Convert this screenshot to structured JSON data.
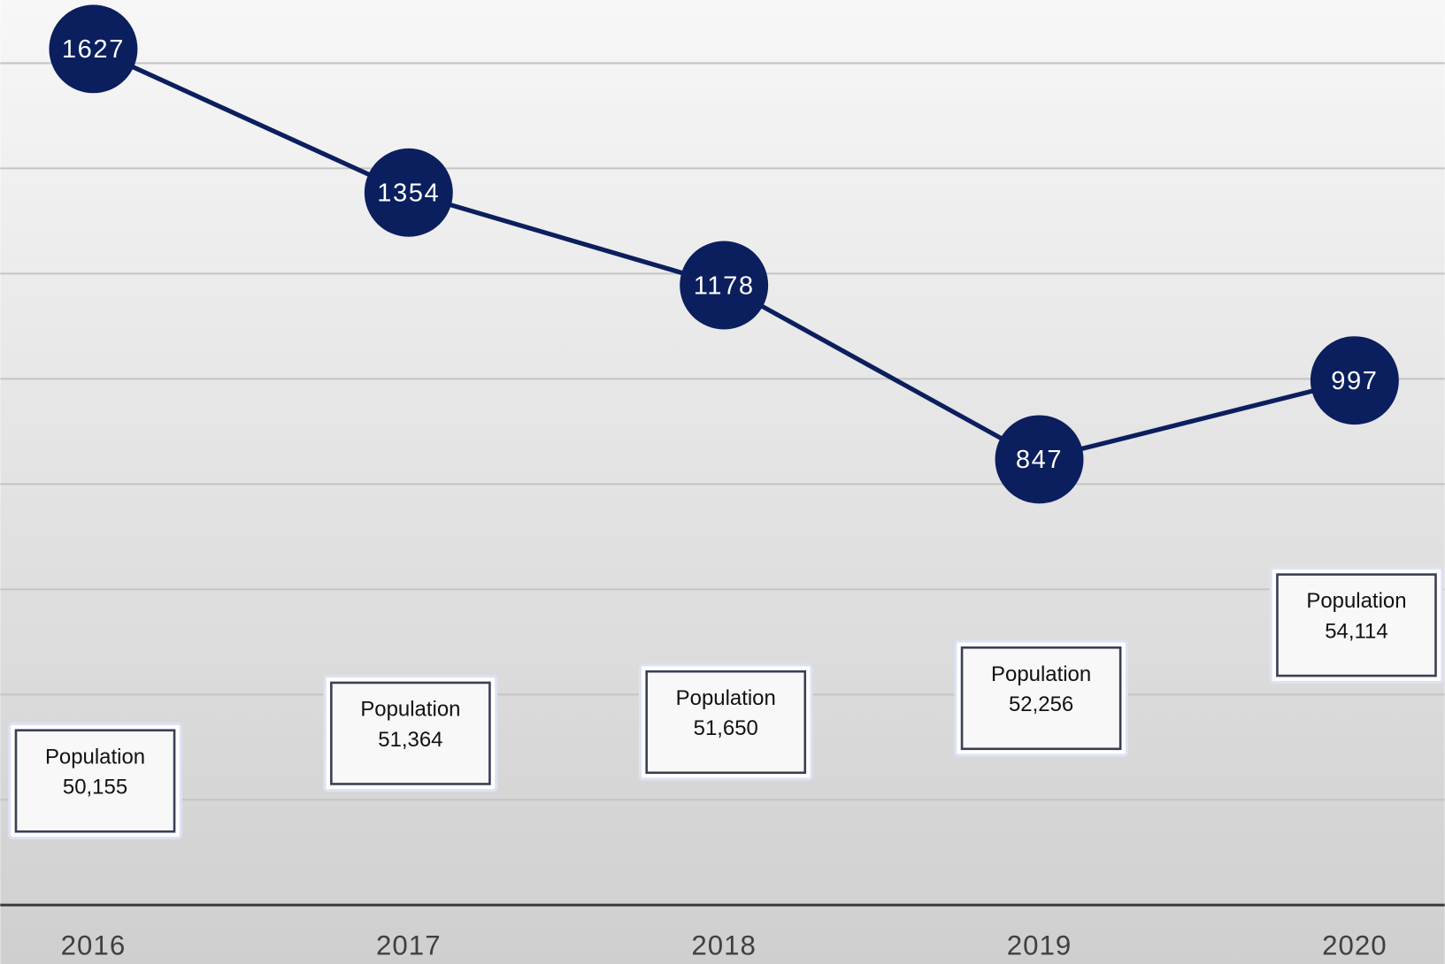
{
  "chart_data": {
    "type": "line",
    "categories": [
      "2016",
      "2017",
      "2018",
      "2019",
      "2020"
    ],
    "series": [
      {
        "color": "#0b1f5e",
        "values": [
          1627,
          1354,
          1178,
          847,
          997
        ]
      },
      {
        "name": "Population",
        "axis": "y2",
        "color": "#ffffff",
        "values": [
          50155,
          51364,
          51650,
          52256,
          54114
        ],
        "value_labels": [
          "50,155",
          "51,364",
          "51,650",
          "52,256",
          "54,114"
        ]
      }
    ],
    "ylim": [
      0,
      1720
    ],
    "yticks": [
      0,
      200,
      400,
      600,
      800,
      1000,
      1200,
      1400,
      1600
    ],
    "grid": true,
    "y2lim": [
      47000,
      70000
    ]
  }
}
